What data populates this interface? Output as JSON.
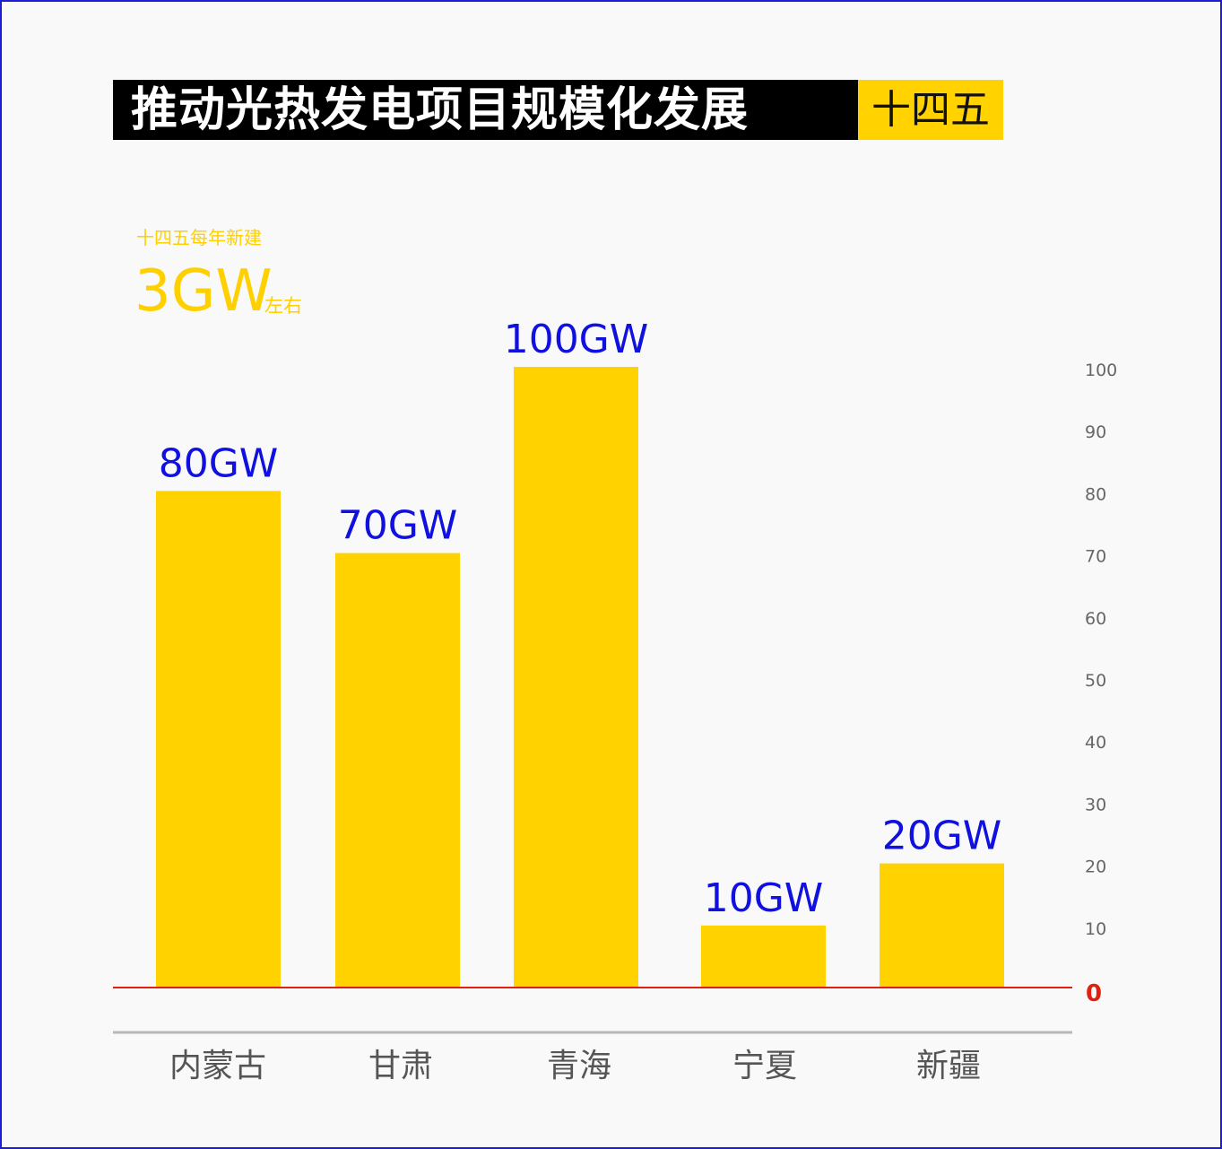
{
  "header": {
    "title": "推动光热发电项目规模化发展",
    "tag": "十四五"
  },
  "highlight": {
    "caption": "十四五每年新建",
    "value": "3GW",
    "suffix": "左右"
  },
  "colors": {
    "bar": "#ffd200",
    "value_label": "#1010e0",
    "zero_line": "#e02010",
    "axis_line": "#b8b8b8",
    "tick_label": "#666666",
    "category_label": "#555555",
    "frame": "#1d1dd6"
  },
  "chart_data": {
    "type": "bar",
    "categories": [
      "内蒙古",
      "甘肃",
      "青海",
      "宁夏",
      "新疆"
    ],
    "values": [
      80,
      70,
      100,
      10,
      20
    ],
    "data_labels": [
      "80GW",
      "70GW",
      "100GW",
      "10GW",
      "20GW"
    ],
    "ylim": [
      0,
      100
    ],
    "y_ticks": [
      0,
      10,
      20,
      30,
      40,
      50,
      60,
      70,
      80,
      90,
      100
    ],
    "y_axis_position": "right",
    "grid": false,
    "xlabel": "",
    "ylabel": ""
  }
}
